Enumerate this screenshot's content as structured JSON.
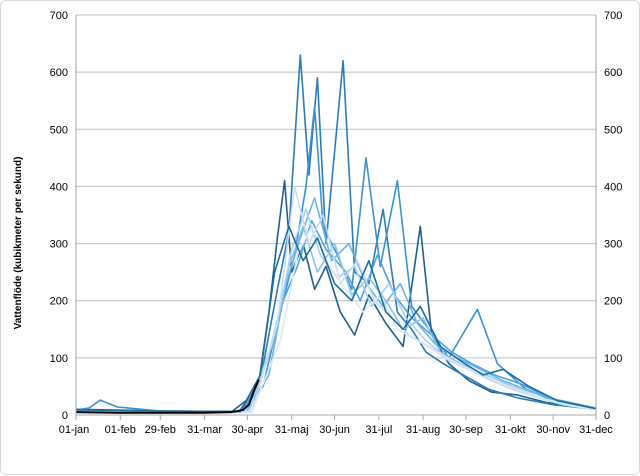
{
  "chart_data": {
    "type": "line",
    "title": "",
    "xlabel": "",
    "ylabel": "Vattenflöde  (kubikmeter per sekund)",
    "ylim": [
      0,
      700
    ],
    "xlim_day": [
      1,
      365
    ],
    "y_ticks": [
      0,
      100,
      200,
      300,
      400,
      500,
      600,
      700
    ],
    "x_ticks": [
      {
        "day": 1,
        "label": "01-jan"
      },
      {
        "day": 32,
        "label": "01-feb"
      },
      {
        "day": 60,
        "label": "29-feb"
      },
      {
        "day": 91,
        "label": "31-mar"
      },
      {
        "day": 121,
        "label": "30-apr"
      },
      {
        "day": 152,
        "label": "31-maj"
      },
      {
        "day": 182,
        "label": "30-jun"
      },
      {
        "day": 213,
        "label": "31-jul"
      },
      {
        "day": 244,
        "label": "31-aug"
      },
      {
        "day": 274,
        "label": "30-sep"
      },
      {
        "day": 305,
        "label": "31-okt"
      },
      {
        "day": 335,
        "label": "30-nov"
      },
      {
        "day": 366,
        "label": "31-dec"
      }
    ],
    "grid": true,
    "dual_y_axis": true,
    "series_colors": [
      "#1f5f8b",
      "#2b7bb9",
      "#3a92cf",
      "#4aa3df",
      "#6bb4e6",
      "#8cc4ec",
      "#a9d2f0",
      "#c6def3",
      "#dbe8f6",
      "#1a6e9c"
    ],
    "series": [
      {
        "color": "#1f5f8b",
        "points": [
          [
            1,
            10
          ],
          [
            60,
            7
          ],
          [
            110,
            6
          ],
          [
            128,
            40
          ],
          [
            136,
            180
          ],
          [
            142,
            310
          ],
          [
            147,
            410
          ],
          [
            152,
            250
          ],
          [
            160,
            300
          ],
          [
            168,
            220
          ],
          [
            176,
            260
          ],
          [
            186,
            180
          ],
          [
            196,
            140
          ],
          [
            206,
            210
          ],
          [
            218,
            160
          ],
          [
            230,
            120
          ],
          [
            242,
            330
          ],
          [
            250,
            140
          ],
          [
            262,
            90
          ],
          [
            276,
            60
          ],
          [
            292,
            40
          ],
          [
            310,
            35
          ],
          [
            330,
            22
          ],
          [
            365,
            10
          ]
        ]
      },
      {
        "color": "#2b7bb9",
        "points": [
          [
            1,
            8
          ],
          [
            60,
            6
          ],
          [
            115,
            5
          ],
          [
            130,
            60
          ],
          [
            142,
            220
          ],
          [
            150,
            320
          ],
          [
            158,
            630
          ],
          [
            164,
            420
          ],
          [
            170,
            590
          ],
          [
            176,
            300
          ],
          [
            188,
            620
          ],
          [
            196,
            250
          ],
          [
            206,
            230
          ],
          [
            216,
            360
          ],
          [
            226,
            180
          ],
          [
            236,
            150
          ],
          [
            246,
            110
          ],
          [
            258,
            90
          ],
          [
            272,
            70
          ],
          [
            290,
            45
          ],
          [
            310,
            30
          ],
          [
            335,
            18
          ],
          [
            365,
            10
          ]
        ]
      },
      {
        "color": "#3a92cf",
        "points": [
          [
            1,
            9
          ],
          [
            10,
            12
          ],
          [
            18,
            26
          ],
          [
            30,
            14
          ],
          [
            60,
            7
          ],
          [
            115,
            6
          ],
          [
            132,
            50
          ],
          [
            144,
            180
          ],
          [
            154,
            280
          ],
          [
            162,
            400
          ],
          [
            168,
            540
          ],
          [
            174,
            330
          ],
          [
            184,
            280
          ],
          [
            194,
            220
          ],
          [
            204,
            450
          ],
          [
            214,
            260
          ],
          [
            226,
            410
          ],
          [
            236,
            190
          ],
          [
            248,
            150
          ],
          [
            262,
            100
          ],
          [
            282,
            185
          ],
          [
            296,
            90
          ],
          [
            316,
            45
          ],
          [
            340,
            20
          ],
          [
            365,
            10
          ]
        ]
      },
      {
        "color": "#4aa3df",
        "points": [
          [
            1,
            8
          ],
          [
            60,
            6
          ],
          [
            118,
            5
          ],
          [
            134,
            90
          ],
          [
            146,
            200
          ],
          [
            156,
            260
          ],
          [
            166,
            340
          ],
          [
            176,
            290
          ],
          [
            190,
            250
          ],
          [
            200,
            200
          ],
          [
            212,
            280
          ],
          [
            224,
            210
          ],
          [
            236,
            170
          ],
          [
            250,
            140
          ],
          [
            264,
            110
          ],
          [
            278,
            90
          ],
          [
            294,
            70
          ],
          [
            312,
            55
          ],
          [
            332,
            30
          ],
          [
            365,
            12
          ]
        ]
      },
      {
        "color": "#6bb4e6",
        "points": [
          [
            1,
            7
          ],
          [
            60,
            6
          ],
          [
            120,
            5
          ],
          [
            136,
            70
          ],
          [
            148,
            230
          ],
          [
            158,
            310
          ],
          [
            168,
            380
          ],
          [
            180,
            270
          ],
          [
            192,
            300
          ],
          [
            204,
            230
          ],
          [
            216,
            190
          ],
          [
            228,
            230
          ],
          [
            240,
            160
          ],
          [
            254,
            120
          ],
          [
            268,
            100
          ],
          [
            284,
            80
          ],
          [
            300,
            60
          ],
          [
            320,
            40
          ],
          [
            345,
            20
          ],
          [
            365,
            10
          ]
        ]
      },
      {
        "color": "#8cc4ec",
        "points": [
          [
            1,
            8
          ],
          [
            60,
            6
          ],
          [
            120,
            5
          ],
          [
            138,
            120
          ],
          [
            150,
            260
          ],
          [
            160,
            330
          ],
          [
            170,
            250
          ],
          [
            182,
            300
          ],
          [
            194,
            210
          ],
          [
            206,
            240
          ],
          [
            218,
            200
          ],
          [
            230,
            150
          ],
          [
            244,
            170
          ],
          [
            256,
            110
          ],
          [
            270,
            90
          ],
          [
            288,
            70
          ],
          [
            306,
            50
          ],
          [
            328,
            28
          ],
          [
            365,
            10
          ]
        ]
      },
      {
        "color": "#a9d2f0",
        "points": [
          [
            1,
            7
          ],
          [
            60,
            6
          ],
          [
            122,
            5
          ],
          [
            140,
            140
          ],
          [
            152,
            290
          ],
          [
            162,
            360
          ],
          [
            172,
            280
          ],
          [
            184,
            240
          ],
          [
            196,
            260
          ],
          [
            208,
            190
          ],
          [
            220,
            230
          ],
          [
            232,
            170
          ],
          [
            246,
            130
          ],
          [
            260,
            100
          ],
          [
            276,
            80
          ],
          [
            292,
            60
          ],
          [
            312,
            40
          ],
          [
            336,
            22
          ],
          [
            365,
            10
          ]
        ]
      },
      {
        "color": "#c6def3",
        "points": [
          [
            1,
            7
          ],
          [
            60,
            6
          ],
          [
            124,
            5
          ],
          [
            142,
            160
          ],
          [
            154,
            400
          ],
          [
            164,
            300
          ],
          [
            174,
            350
          ],
          [
            186,
            230
          ],
          [
            198,
            270
          ],
          [
            210,
            200
          ],
          [
            222,
            170
          ],
          [
            234,
            140
          ],
          [
            248,
            120
          ],
          [
            262,
            95
          ],
          [
            280,
            75
          ],
          [
            298,
            55
          ],
          [
            318,
            35
          ],
          [
            342,
            18
          ],
          [
            365,
            9
          ]
        ]
      },
      {
        "color": "#dbe8f6",
        "points": [
          [
            1,
            7
          ],
          [
            60,
            6
          ],
          [
            124,
            5
          ],
          [
            144,
            130
          ],
          [
            156,
            280
          ],
          [
            166,
            330
          ],
          [
            178,
            260
          ],
          [
            190,
            220
          ],
          [
            202,
            180
          ],
          [
            214,
            210
          ],
          [
            226,
            150
          ],
          [
            240,
            130
          ],
          [
            254,
            110
          ],
          [
            268,
            90
          ],
          [
            286,
            70
          ],
          [
            304,
            50
          ],
          [
            326,
            30
          ],
          [
            350,
            16
          ],
          [
            365,
            9
          ]
        ]
      },
      {
        "color": "#1a6e9c",
        "points": [
          [
            1,
            9
          ],
          [
            60,
            7
          ],
          [
            116,
            6
          ],
          [
            130,
            70
          ],
          [
            140,
            250
          ],
          [
            150,
            330
          ],
          [
            160,
            270
          ],
          [
            170,
            310
          ],
          [
            182,
            230
          ],
          [
            194,
            200
          ],
          [
            206,
            270
          ],
          [
            218,
            180
          ],
          [
            230,
            150
          ],
          [
            242,
            190
          ],
          [
            256,
            120
          ],
          [
            270,
            95
          ],
          [
            286,
            70
          ],
          [
            300,
            80
          ],
          [
            318,
            50
          ],
          [
            338,
            25
          ],
          [
            365,
            11
          ]
        ]
      },
      {
        "color": "#000000",
        "points": [
          [
            1,
            5
          ],
          [
            30,
            4
          ],
          [
            60,
            4
          ],
          [
            90,
            4
          ],
          [
            110,
            5
          ],
          [
            118,
            9
          ],
          [
            122,
            18
          ],
          [
            126,
            45
          ],
          [
            129,
            62
          ]
        ]
      }
    ]
  }
}
